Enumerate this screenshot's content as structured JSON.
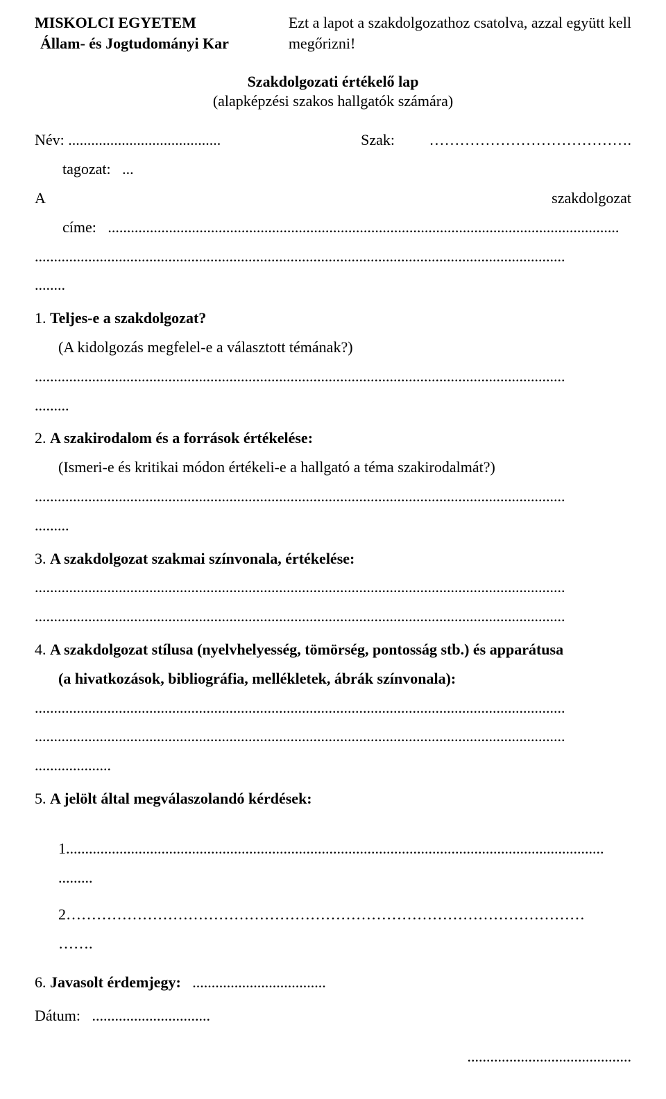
{
  "header": {
    "university": "MISKOLCI EGYETEM",
    "faculty": "Állam- és Jogtudományi Kar",
    "attach_note_line1": "Ezt a lapot a szakdolgozathoz csatolva, azzal együtt kell",
    "attach_note_line2": "megőrizni!"
  },
  "title": {
    "main": "Szakdolgozati értékelő lap",
    "sub": "(alapképzési szakos hallgatók számára)"
  },
  "fields": {
    "name_label": "Név:",
    "name_dots": "........................................",
    "szak_label": "Szak:",
    "szak_dots": "………………………………….",
    "tagozat_label": "tagozat:",
    "tagozat_dots": "...",
    "a_label": "A",
    "szakdolgozat_label": "szakdolgozat",
    "cime_label": "címe:",
    "cime_dots": "......................................................................................................................................",
    "cime_line2_dots": "...........................................................................................................................................",
    "cime_line3_dots": "........"
  },
  "q1": {
    "heading_num": "1. ",
    "heading_text": "Teljes-e a szakdolgozat?",
    "sub": "(A kidolgozás megfelel-e a választott témának?)",
    "dots1": "...........................................................................................................................................",
    "dots2": "........."
  },
  "q2": {
    "heading_num": "2. ",
    "heading_text": "A szakirodalom és a források értékelése:",
    "sub": "(Ismeri-e és kritikai módon értékeli-e a hallgató a téma szakirodalmát?)",
    "dots1": "...........................................................................................................................................",
    "dots2": "........."
  },
  "q3": {
    "heading_num": "3. ",
    "heading_text": "A szakdolgozat szakmai színvonala, értékelése:",
    "dots1": "...........................................................................................................................................",
    "dots2": "..........................................................................................................................................."
  },
  "q4": {
    "heading_num": "4. ",
    "heading_text": "A szakdolgozat stílusa (nyelvhelyesség, tömörség, pontosság  stb.) és apparátusa",
    "sub_bold": "(a hivatkozások, bibliográfia, mellékletek, ábrák színvonala):",
    "dots1": "...........................................................................................................................................",
    "dots2": "...........................................................................................................................................",
    "dots3": "...................."
  },
  "q5": {
    "heading_num": "5. ",
    "heading_text": "A jelölt által megválaszolandó kérdések:",
    "item1": "1.............................................................................................................................................",
    "item1_tail": ".........",
    "item2": "2…………………………………………………………………………………………",
    "item2_tail": "……."
  },
  "q6": {
    "heading_num": "6. ",
    "heading_text": "Javasolt érdemjegy:",
    "dots": "..................................."
  },
  "footer": {
    "datum_label": "Dátum:",
    "datum_dots": "...............................",
    "signature_dots": "..........................................."
  }
}
